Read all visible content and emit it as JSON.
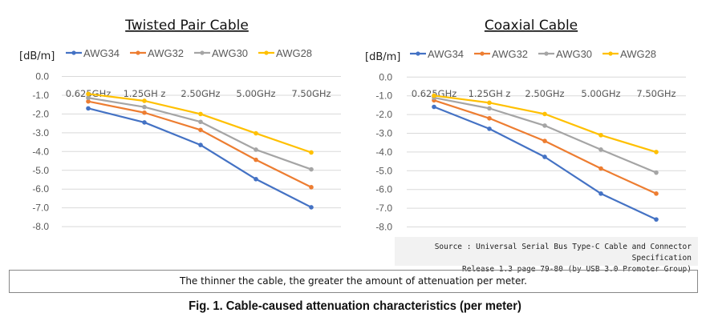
{
  "chart_data": [
    {
      "type": "line",
      "title": "Twisted Pair Cable",
      "ylabel": "[dB/m]",
      "xlabel": "",
      "categories": [
        "0.625GHz",
        "1.25GH z",
        "2.50GHz",
        "5.00GHz",
        "7.50GHz"
      ],
      "ylim": [
        -8.0,
        0.0
      ],
      "yticks": [
        "0.0",
        "-1.0",
        "-2.0",
        "-3.0",
        "-4.0",
        "-5.0",
        "-6.0",
        "-7.0",
        "-8.0"
      ],
      "grid": true,
      "legend": "top",
      "series": [
        {
          "name": "AWG34",
          "color": "#4472C4",
          "values": [
            -1.7,
            -2.45,
            -3.65,
            -5.47,
            -6.97
          ]
        },
        {
          "name": "AWG32",
          "color": "#ED7D31",
          "values": [
            -1.33,
            -1.93,
            -2.85,
            -4.44,
            -5.9
          ]
        },
        {
          "name": "AWG30",
          "color": "#A5A5A5",
          "values": [
            -1.14,
            -1.63,
            -2.42,
            -3.9,
            -4.95
          ]
        },
        {
          "name": "AWG28",
          "color": "#FFC000",
          "values": [
            -0.93,
            -1.3,
            -2.0,
            -3.03,
            -4.05
          ]
        }
      ]
    },
    {
      "type": "line",
      "title": "Coaxial Cable",
      "ylabel": "[dB/m]",
      "xlabel": "",
      "categories": [
        "0.625GHz",
        "1.25GH z",
        "2.50GHz",
        "5.00GHz",
        "7.50GHz"
      ],
      "ylim": [
        -8.0,
        0.0
      ],
      "yticks": [
        "0.0",
        "-1.0",
        "-2.0",
        "-3.0",
        "-4.0",
        "-5.0",
        "-6.0",
        "-7.0",
        "-8.0"
      ],
      "grid": true,
      "legend": "top",
      "series": [
        {
          "name": "AWG34",
          "color": "#4472C4",
          "values": [
            -1.59,
            -2.76,
            -4.26,
            -6.22,
            -7.6
          ]
        },
        {
          "name": "AWG32",
          "color": "#ED7D31",
          "values": [
            -1.24,
            -2.2,
            -3.41,
            -4.88,
            -6.22
          ]
        },
        {
          "name": "AWG30",
          "color": "#A5A5A5",
          "values": [
            -1.1,
            -1.67,
            -2.59,
            -3.87,
            -5.1
          ]
        },
        {
          "name": "AWG28",
          "color": "#FFC000",
          "values": [
            -0.99,
            -1.37,
            -1.97,
            -3.1,
            -4.0
          ]
        }
      ]
    }
  ],
  "source": {
    "line1": "Source : Universal Serial Bus Type-C Cable and Connector Specification",
    "line2": "Release 1.3 page 79-80  (by USB 3.0 Promoter Group)"
  },
  "note": "The thinner the cable, the greater the amount of attenuation per meter.",
  "caption": "Fig. 1. Cable-caused attenuation characteristics (per meter)"
}
